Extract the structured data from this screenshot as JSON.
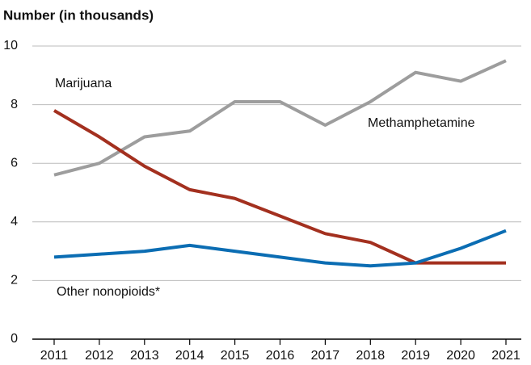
{
  "chart_data": {
    "type": "line",
    "y_axis_label": "Number (in thousands)",
    "categories": [
      "2011",
      "2012",
      "2013",
      "2014",
      "2015",
      "2016",
      "2017",
      "2018",
      "2019",
      "2020",
      "2021"
    ],
    "series": [
      {
        "name": "Methamphetamine",
        "color": "#9d9d9d",
        "values": [
          5.6,
          6.0,
          6.9,
          7.1,
          8.1,
          8.1,
          7.3,
          8.1,
          9.1,
          8.8,
          9.5
        ]
      },
      {
        "name": "Marijuana",
        "color": "#a3301f",
        "values": [
          7.8,
          6.9,
          5.9,
          5.1,
          4.8,
          4.2,
          3.6,
          3.3,
          2.6,
          2.6,
          2.6
        ]
      },
      {
        "name": "Other nonopioids*",
        "color": "#0b6db3",
        "values": [
          2.8,
          2.9,
          3.0,
          3.2,
          3.0,
          2.8,
          2.6,
          2.5,
          2.6,
          3.1,
          3.7
        ]
      }
    ],
    "ylim": [
      0,
      10
    ],
    "yticks": [
      0,
      2,
      4,
      6,
      8,
      10
    ],
    "grid": true
  }
}
